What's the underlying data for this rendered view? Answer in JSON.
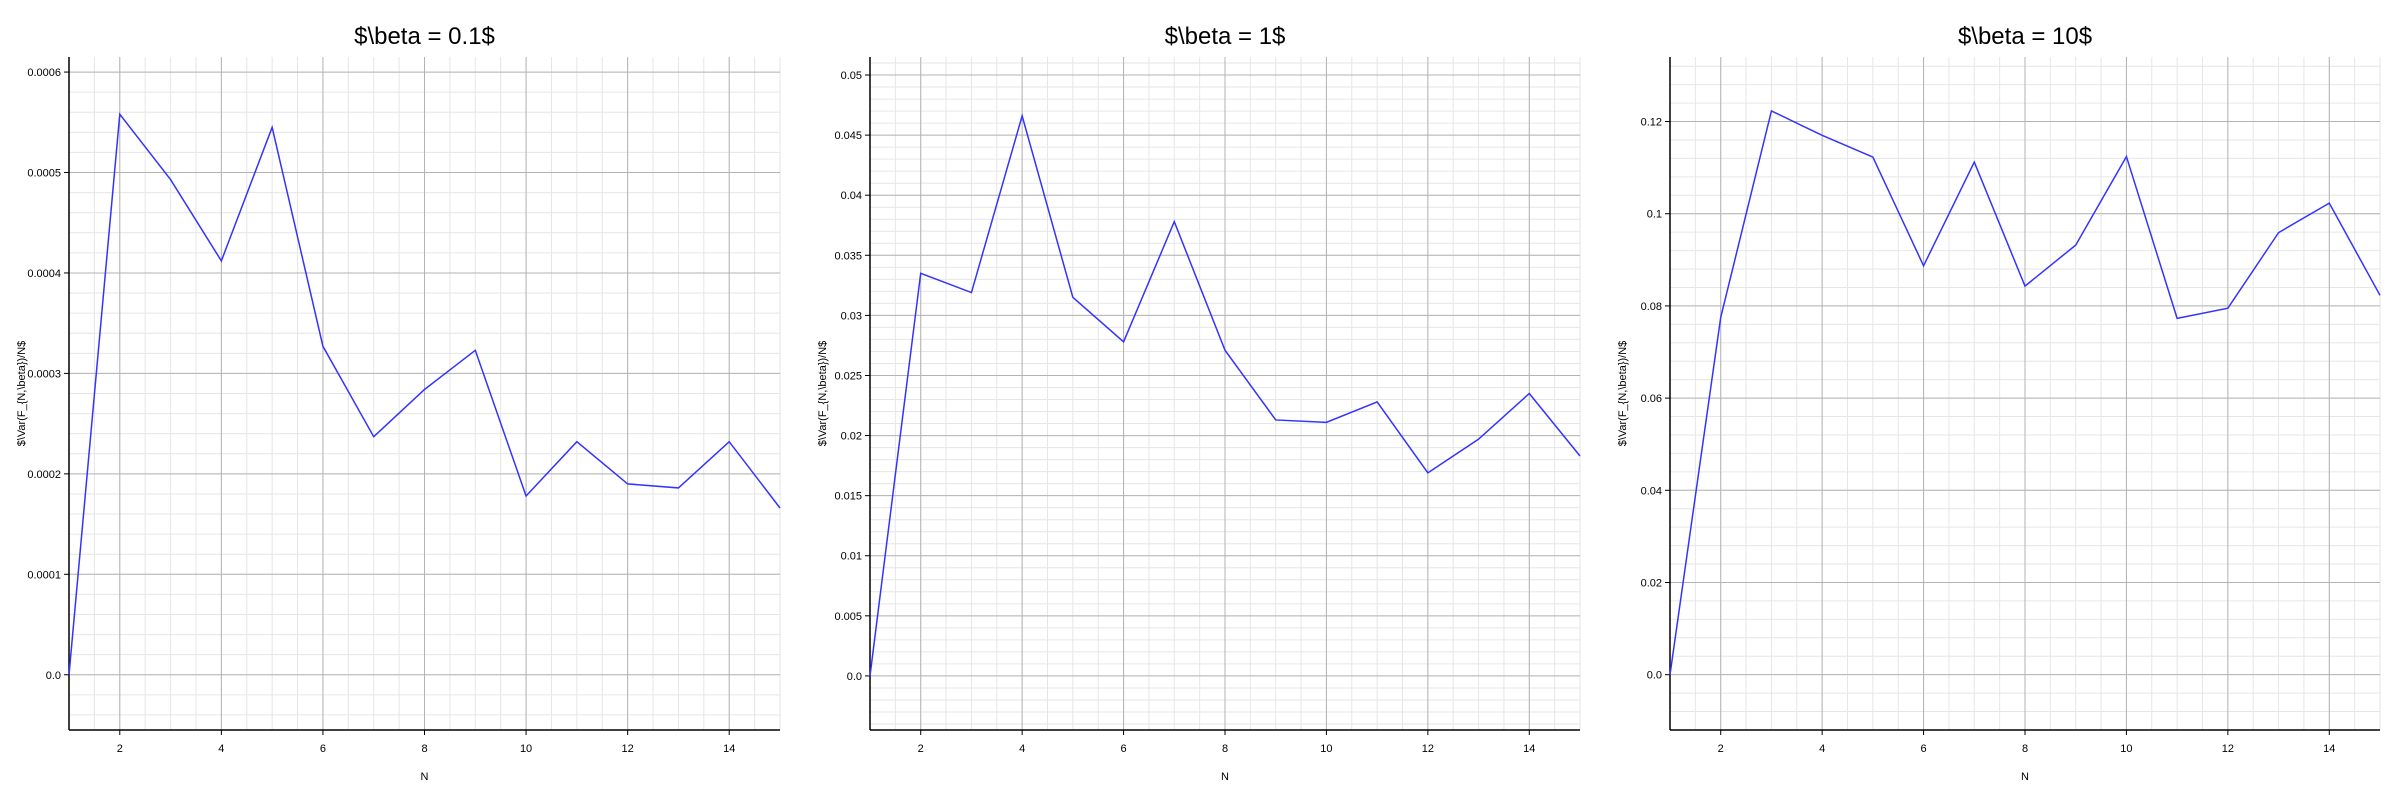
{
  "colors": {
    "line": "#3333ff",
    "axis": "#000000",
    "major_grid": "#b3b3b3",
    "minor_grid": "#e6e6e6"
  },
  "chart_data": [
    {
      "type": "line",
      "title": "$\\beta = 0.1$",
      "xlabel": "N",
      "ylabel": "$\\Var(F_{N,\\beta})/N$",
      "grid": true,
      "xlim": [
        1,
        15
      ],
      "ylim": [
        -5.5e-05,
        0.000615
      ],
      "xticks": [
        2,
        4,
        6,
        8,
        10,
        12,
        14
      ],
      "xtick_labels": [
        "2",
        "4",
        "6",
        "8",
        "10",
        "12",
        "14"
      ],
      "yticks": [
        0.0,
        0.0001,
        0.0002,
        0.0003,
        0.0004,
        0.0005,
        0.0006
      ],
      "ytick_labels": [
        "0.0",
        "0.0001",
        "0.0002",
        "0.0003",
        "0.0004",
        "0.0005",
        "0.0006"
      ],
      "x": [
        1,
        2,
        3,
        4,
        5,
        6,
        7,
        8,
        9,
        10,
        11,
        12,
        13,
        14,
        15
      ],
      "series": [
        {
          "values": [
            0.0,
            0.000558,
            0.000493,
            0.000412,
            0.000545,
            0.000327,
            0.000237,
            0.000284,
            0.000323,
            0.000178,
            0.000232,
            0.00019,
            0.000186,
            0.000232,
            0.000166
          ]
        }
      ]
    },
    {
      "type": "line",
      "title": "$\\beta = 1$",
      "xlabel": "N",
      "ylabel": "$\\Var(F_{N,\\beta})/N$",
      "grid": true,
      "xlim": [
        1,
        15
      ],
      "ylim": [
        -0.0045,
        0.0515
      ],
      "xticks": [
        2,
        4,
        6,
        8,
        10,
        12,
        14
      ],
      "xtick_labels": [
        "2",
        "4",
        "6",
        "8",
        "10",
        "12",
        "14"
      ],
      "yticks": [
        0.0,
        0.005,
        0.01,
        0.015,
        0.02,
        0.025,
        0.03,
        0.035,
        0.04,
        0.045,
        0.05
      ],
      "ytick_labels": [
        "0.0",
        "0.005",
        "0.01",
        "0.015",
        "0.02",
        "0.025",
        "0.03",
        "0.035",
        "0.04",
        "0.045",
        "0.05"
      ],
      "x": [
        1,
        2,
        3,
        4,
        5,
        6,
        7,
        8,
        9,
        10,
        11,
        12,
        13,
        14,
        15
      ],
      "series": [
        {
          "values": [
            0.0,
            0.0335,
            0.0319,
            0.0466,
            0.0315,
            0.0278,
            0.0378,
            0.0271,
            0.0213,
            0.0211,
            0.0228,
            0.0169,
            0.0197,
            0.0235,
            0.0183
          ]
        }
      ]
    },
    {
      "type": "line",
      "title": "$\\beta = 10$",
      "xlabel": "N",
      "ylabel": "$\\Var(F_{N,\\beta})/N$",
      "grid": true,
      "xlim": [
        1,
        15
      ],
      "ylim": [
        -0.012,
        0.134
      ],
      "xticks": [
        2,
        4,
        6,
        8,
        10,
        12,
        14
      ],
      "xtick_labels": [
        "2",
        "4",
        "6",
        "8",
        "10",
        "12",
        "14"
      ],
      "yticks": [
        0.0,
        0.02,
        0.04,
        0.06,
        0.08,
        0.1,
        0.12
      ],
      "ytick_labels": [
        "0.0",
        "0.02",
        "0.04",
        "0.06",
        "0.08",
        "0.1",
        "0.12"
      ],
      "x": [
        1,
        2,
        3,
        4,
        5,
        6,
        7,
        8,
        9,
        10,
        11,
        12,
        13,
        14,
        15
      ],
      "series": [
        {
          "values": [
            0.0,
            0.0775,
            0.1223,
            0.117,
            0.1123,
            0.0887,
            0.1112,
            0.0843,
            0.0932,
            0.1124,
            0.0773,
            0.0795,
            0.0959,
            0.1023,
            0.0823
          ]
        }
      ]
    }
  ]
}
